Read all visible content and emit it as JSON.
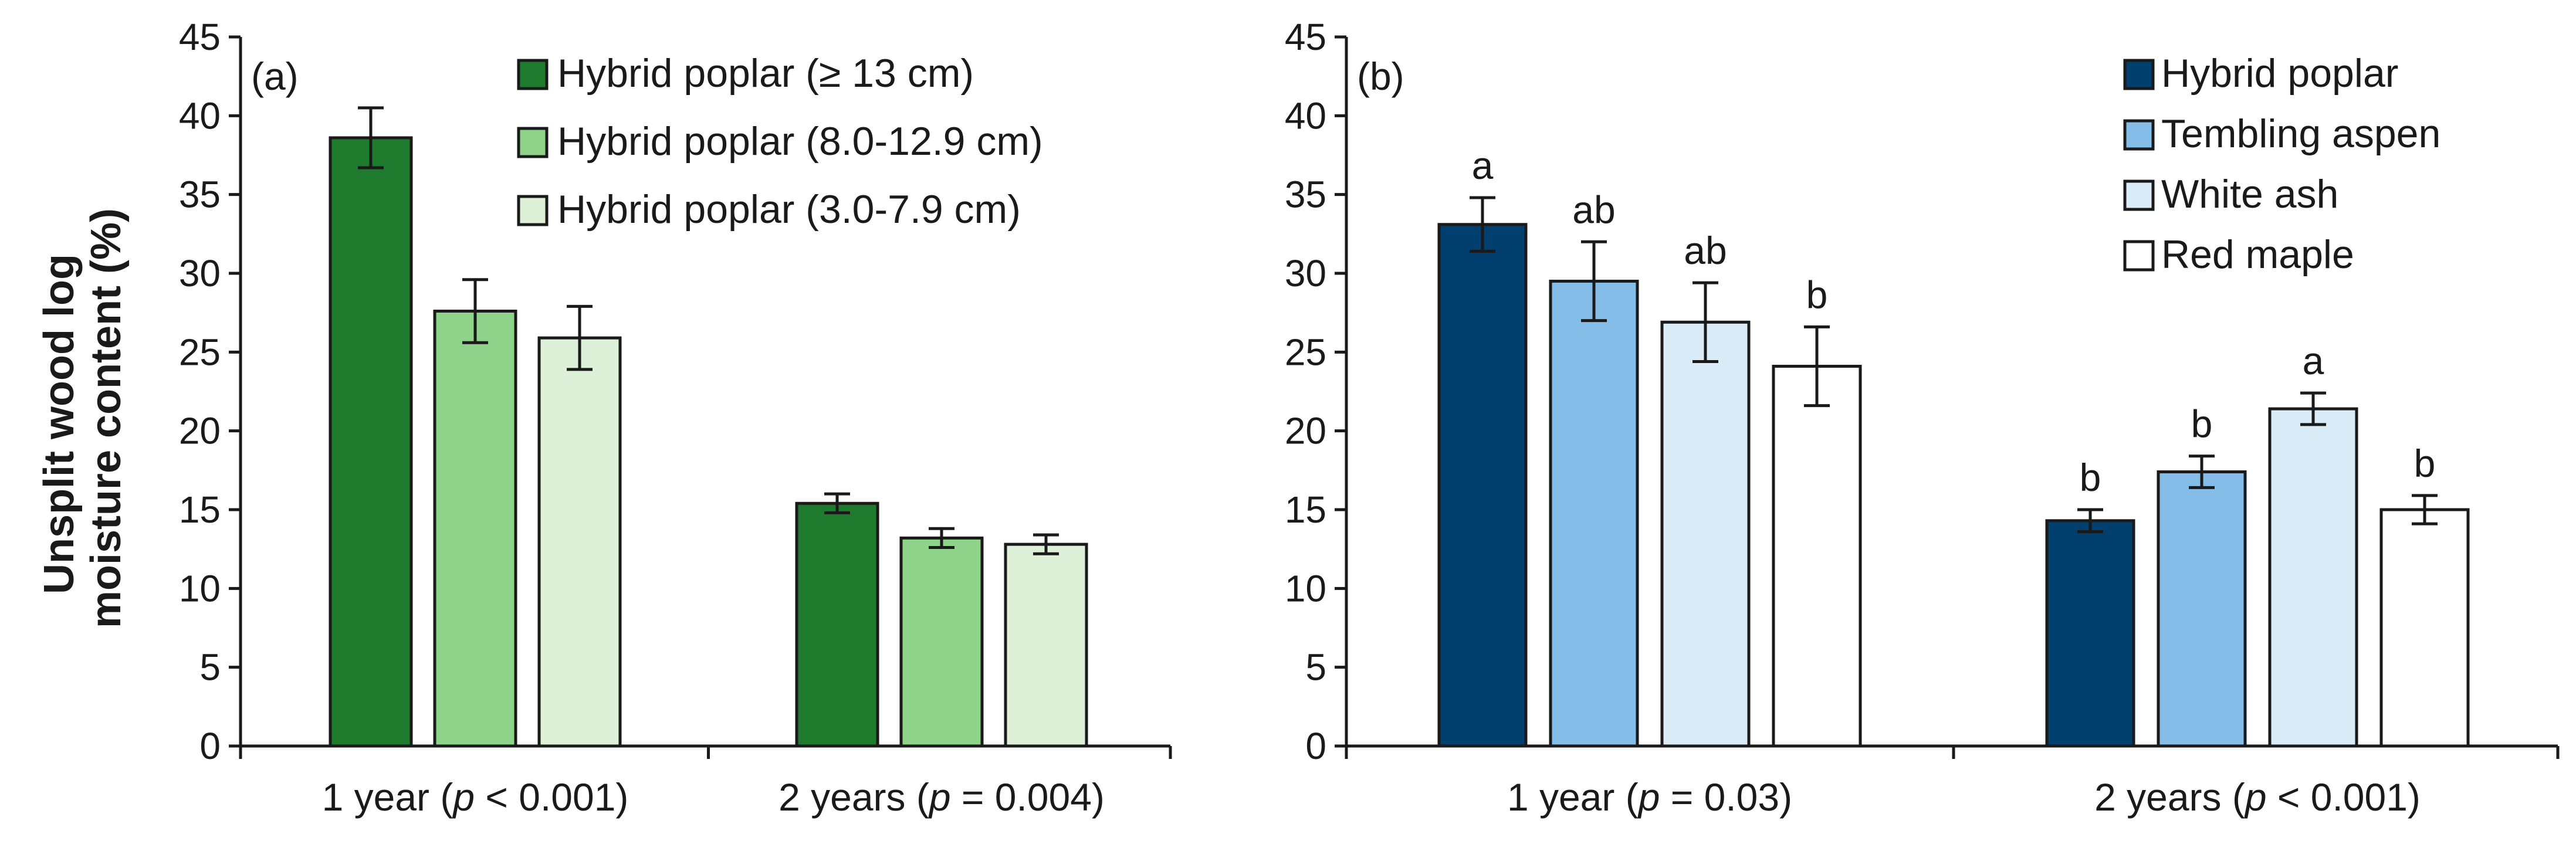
{
  "ylabel_line1": "Unsplit wood log",
  "ylabel_line2": "moisture content (%)",
  "chart_data": [
    {
      "type": "bar",
      "panel_label": "(a)",
      "ylim": [
        0,
        45
      ],
      "ytick_step": 5,
      "categories": [
        "1 year (p < 0.001)",
        "2 years (p = 0.004)"
      ],
      "category_parts": [
        {
          "pre": "1 year (",
          "italic": "p",
          "post": " < 0.001)"
        },
        {
          "pre": "2 years (",
          "italic": "p",
          "post": " = 0.004)"
        }
      ],
      "legend_position": "top-right",
      "series": [
        {
          "name": "Hybrid poplar (≥ 13 cm)",
          "color": "#1e7b2e",
          "values": [
            38.6,
            15.4
          ],
          "errors": [
            1.9,
            0.6
          ],
          "labels": [
            "",
            ""
          ]
        },
        {
          "name": "Hybrid poplar (8.0-12.9 cm)",
          "color": "#8fd28a",
          "values": [
            27.6,
            13.2
          ],
          "errors": [
            2.0,
            0.6
          ],
          "labels": [
            "",
            ""
          ]
        },
        {
          "name": "Hybrid poplar (3.0-7.9 cm)",
          "color": "#ddf0d8",
          "values": [
            25.9,
            12.8
          ],
          "errors": [
            2.0,
            0.6
          ],
          "labels": [
            "",
            ""
          ]
        }
      ]
    },
    {
      "type": "bar",
      "panel_label": "(b)",
      "ylim": [
        0,
        45
      ],
      "ytick_step": 5,
      "categories": [
        "1 year (p = 0.03)",
        "2 years (p < 0.001)"
      ],
      "category_parts": [
        {
          "pre": "1 year (",
          "italic": "p",
          "post": " = 0.03)"
        },
        {
          "pre": "2 years (",
          "italic": "p",
          "post": " < 0.001)"
        }
      ],
      "legend_position": "top-right",
      "series": [
        {
          "name": "Hybrid poplar",
          "color": "#003f6e",
          "values": [
            33.1,
            14.3
          ],
          "errors": [
            1.7,
            0.7
          ],
          "labels": [
            "a",
            "b"
          ]
        },
        {
          "name": "Tembling aspen",
          "color": "#84bde8",
          "values": [
            29.5,
            17.4
          ],
          "errors": [
            2.5,
            1.0
          ],
          "labels": [
            "ab",
            "b"
          ]
        },
        {
          "name": "White ash",
          "color": "#daecf8",
          "values": [
            26.9,
            21.4
          ],
          "errors": [
            2.5,
            1.0
          ],
          "labels": [
            "ab",
            "a"
          ]
        },
        {
          "name": "Red maple",
          "color": "#ffffff",
          "values": [
            24.1,
            15.0
          ],
          "errors": [
            2.5,
            0.9
          ],
          "labels": [
            "b",
            "b"
          ]
        }
      ]
    }
  ]
}
